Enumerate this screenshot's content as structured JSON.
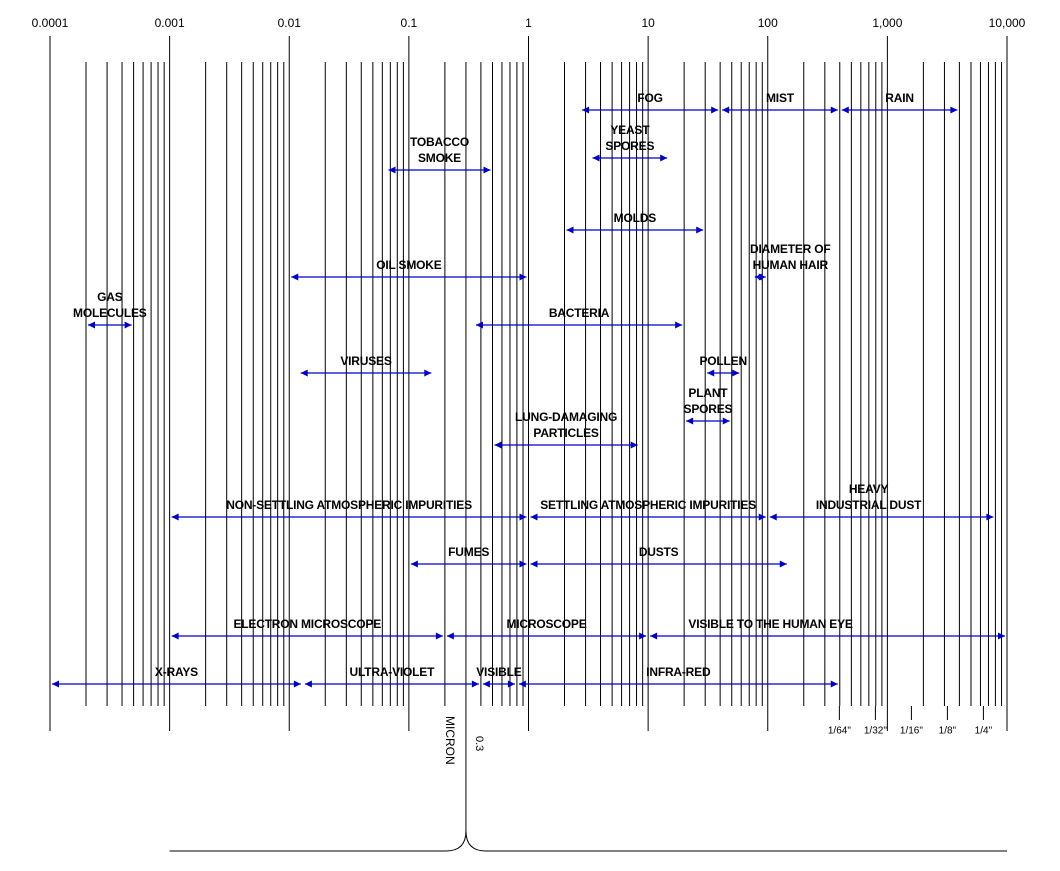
{
  "chart_data": {
    "type": "range",
    "xscale": "log",
    "xlim": [
      0.0001,
      10000
    ],
    "xticks": [
      0.0001,
      0.001,
      0.01,
      0.1,
      1,
      10,
      100,
      {
        "value": 1000,
        "label": "1,000"
      },
      {
        "value": 10000,
        "label": "10,000"
      }
    ],
    "x2ticks": [
      {
        "value": 397,
        "label": "1/64\""
      },
      {
        "value": 794,
        "label": "1/32\""
      },
      {
        "value": 1588,
        "label": "1/16\""
      },
      {
        "value": 3175,
        "label": "1/8\""
      },
      {
        "value": 6350,
        "label": "1/4\""
      }
    ],
    "grid": true,
    "minor_grid": true,
    "color": "#0000cc",
    "ranges": [
      {
        "label": "FOG",
        "values": [
          2.7,
          40
        ]
      },
      {
        "label": "MIST",
        "values": [
          40,
          400
        ]
      },
      {
        "label": "RAIN",
        "values": [
          400,
          4000
        ]
      },
      {
        "label": "YEAST\nSPORES",
        "values": [
          3.3,
          15
        ]
      },
      {
        "label": "TOBACCO\nSMOKE",
        "values": [
          0.065,
          0.5
        ]
      },
      {
        "label": "MOLDS",
        "values": [
          2,
          30
        ]
      },
      {
        "label": "DIAMETER OF\nHUMAN HAIR",
        "values": [
          75,
          100
        ]
      },
      {
        "label": "OIL SMOKE",
        "values": [
          0.01,
          1
        ]
      },
      {
        "label": "GAS\nMOLECULES",
        "values": [
          0.0002,
          0.0005
        ]
      },
      {
        "label": "BACTERIA",
        "values": [
          0.35,
          20
        ]
      },
      {
        "label": "VIRUSES",
        "values": [
          0.012,
          0.16
        ]
      },
      {
        "label": "POLLEN",
        "values": [
          30,
          60
        ]
      },
      {
        "label": "PLANT\nSPORES",
        "values": [
          20,
          50
        ]
      },
      {
        "label": "LUNG-DAMAGING\nPARTICLES",
        "values": [
          0.5,
          8.5
        ]
      },
      {
        "label": "NON-SETTLING ATMOSPHERIC IMPURITIES",
        "values": [
          0.001,
          1
        ]
      },
      {
        "label": "SETTLING ATMOSPHERIC IMPURITIES",
        "values": [
          1,
          100
        ]
      },
      {
        "label": "HEAVY\nINDUSTRIAL DUST",
        "values": [
          100,
          8000
        ]
      },
      {
        "label": "FUMES",
        "values": [
          0.1,
          1
        ]
      },
      {
        "label": "DUSTS",
        "values": [
          1,
          150
        ]
      },
      {
        "label": "ELECTRON MICROSCOPE",
        "values": [
          0.001,
          0.2
        ]
      },
      {
        "label": "MICROSCOPE",
        "values": [
          0.2,
          10
        ]
      },
      {
        "label": "VISIBLE TO THE HUMAN EYE",
        "values": [
          10,
          10000
        ]
      },
      {
        "label": "X-RAYS",
        "values": [
          0.0001,
          0.013
        ]
      },
      {
        "label": "ULTRA-VIOLET",
        "values": [
          0.013,
          0.4
        ]
      },
      {
        "label": "VISIBLE",
        "values": [
          0.4,
          0.8
        ]
      },
      {
        "label": "INFRA-RED",
        "values": [
          0.8,
          400
        ]
      }
    ],
    "marker": {
      "label": "MICRON",
      "x": 0.3,
      "span": [
        0.001,
        10000
      ]
    }
  }
}
